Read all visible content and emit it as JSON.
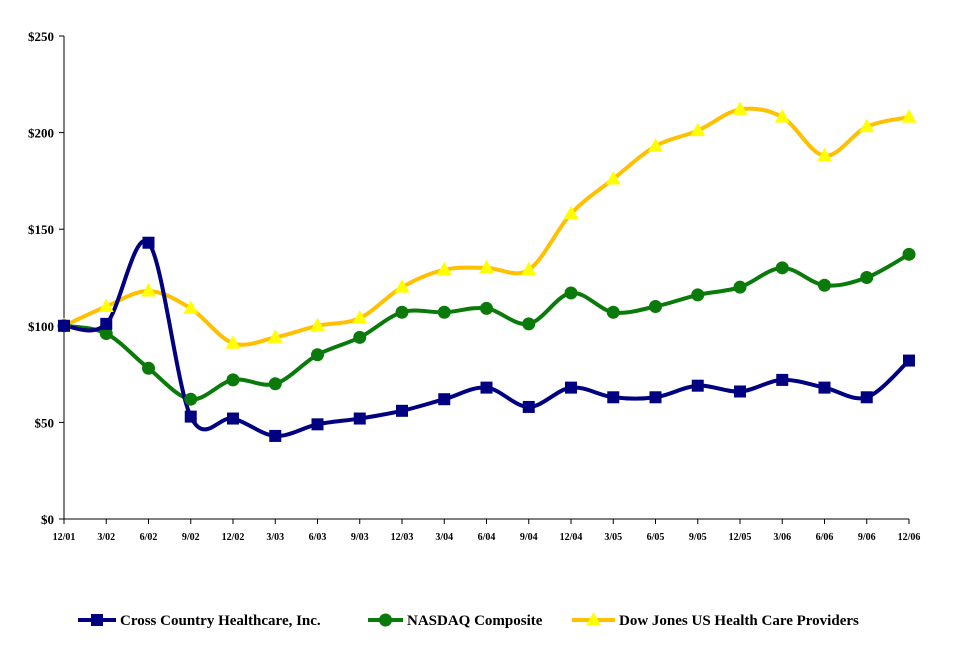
{
  "chart_data": {
    "type": "line",
    "title": "",
    "xlabel": "",
    "ylabel": "",
    "categories": [
      "12/01",
      "3/02",
      "6/02",
      "9/02",
      "12/02",
      "3/03",
      "6/03",
      "9/03",
      "12/03",
      "3/04",
      "6/04",
      "9/04",
      "12/04",
      "3/05",
      "6/05",
      "9/05",
      "12/05",
      "3/06",
      "6/06",
      "9/06",
      "12/06"
    ],
    "ylim": [
      0,
      250
    ],
    "yticks": [
      0,
      50,
      100,
      150,
      200,
      250
    ],
    "ytick_labels": [
      "$0",
      "$50",
      "$100",
      "$150",
      "$200",
      "$250"
    ],
    "grid": false,
    "legend_position": "bottom",
    "series": [
      {
        "name": "Cross Country Healthcare, Inc.",
        "color": "#000080",
        "marker": "square",
        "values": [
          100,
          101,
          143,
          53,
          52,
          43,
          49,
          52,
          56,
          62,
          68,
          58,
          68,
          63,
          63,
          69,
          66,
          72,
          68,
          63,
          82
        ]
      },
      {
        "name": "NASDAQ Composite",
        "color": "#0a7a0a",
        "marker": "circle",
        "values": [
          100,
          96,
          78,
          62,
          72,
          70,
          85,
          94,
          107,
          107,
          109,
          101,
          117,
          107,
          110,
          116,
          120,
          130,
          121,
          125,
          137
        ]
      },
      {
        "name": "Dow Jones US Health Care Providers",
        "color": "#ffc000",
        "marker_color": "#ffff00",
        "marker": "triangle",
        "values": [
          100,
          110,
          118,
          109,
          91,
          94,
          100,
          104,
          120,
          129,
          130,
          129,
          158,
          176,
          193,
          201,
          212,
          208,
          188,
          203,
          208
        ]
      }
    ]
  }
}
